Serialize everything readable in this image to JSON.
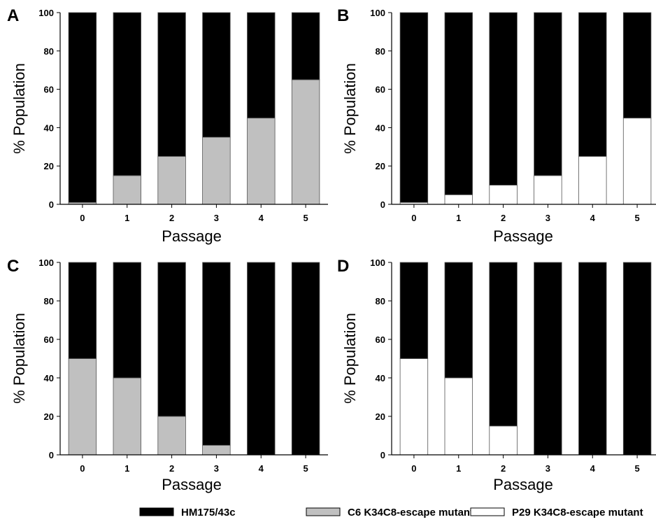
{
  "colors": {
    "HM175/43c": "#000000",
    "C6 K34C8-escape mutant": "#c0c0c0",
    "P29 K34C8-escape mutant": "#ffffff"
  },
  "legend": [
    "HM175/43c",
    "C6 K34C8-escape mutant",
    "P29 K34C8-escape mutant"
  ],
  "chart_data": [
    {
      "panel": "A",
      "type": "bar",
      "stacked": true,
      "categories": [
        "0",
        "1",
        "2",
        "3",
        "4",
        "5"
      ],
      "series": [
        {
          "name": "C6 K34C8-escape mutant",
          "values": [
            1,
            15,
            25,
            35,
            45,
            65
          ]
        },
        {
          "name": "HM175/43c",
          "values": [
            99,
            85,
            75,
            65,
            55,
            35
          ]
        }
      ],
      "xlabel": "Passage",
      "ylabel": "% Population",
      "ylim": [
        0,
        100
      ],
      "yticks": [
        0,
        20,
        40,
        60,
        80,
        100
      ]
    },
    {
      "panel": "B",
      "type": "bar",
      "stacked": true,
      "categories": [
        "0",
        "1",
        "2",
        "3",
        "4",
        "5"
      ],
      "series": [
        {
          "name": "P29 K34C8-escape mutant",
          "values": [
            1,
            5,
            10,
            15,
            25,
            45
          ]
        },
        {
          "name": "HM175/43c",
          "values": [
            99,
            95,
            90,
            85,
            75,
            55
          ]
        }
      ],
      "xlabel": "Passage",
      "ylabel": "% Population",
      "ylim": [
        0,
        100
      ],
      "yticks": [
        0,
        20,
        40,
        60,
        80,
        100
      ]
    },
    {
      "panel": "C",
      "type": "bar",
      "stacked": true,
      "categories": [
        "0",
        "1",
        "2",
        "3",
        "4",
        "5"
      ],
      "series": [
        {
          "name": "C6 K34C8-escape mutant",
          "values": [
            50,
            40,
            20,
            5,
            0,
            0
          ]
        },
        {
          "name": "HM175/43c",
          "values": [
            50,
            60,
            80,
            95,
            100,
            100
          ]
        }
      ],
      "xlabel": "Passage",
      "ylabel": "% Population",
      "ylim": [
        0,
        100
      ],
      "yticks": [
        0,
        20,
        40,
        60,
        80,
        100
      ]
    },
    {
      "panel": "D",
      "type": "bar",
      "stacked": true,
      "categories": [
        "0",
        "1",
        "2",
        "3",
        "4",
        "5"
      ],
      "series": [
        {
          "name": "P29 K34C8-escape mutant",
          "values": [
            50,
            40,
            15,
            0,
            0,
            0
          ]
        },
        {
          "name": "HM175/43c",
          "values": [
            50,
            60,
            85,
            100,
            100,
            100
          ]
        }
      ],
      "xlabel": "Passage",
      "ylabel": "% Population",
      "ylim": [
        0,
        100
      ],
      "yticks": [
        0,
        20,
        40,
        60,
        80,
        100
      ]
    }
  ]
}
